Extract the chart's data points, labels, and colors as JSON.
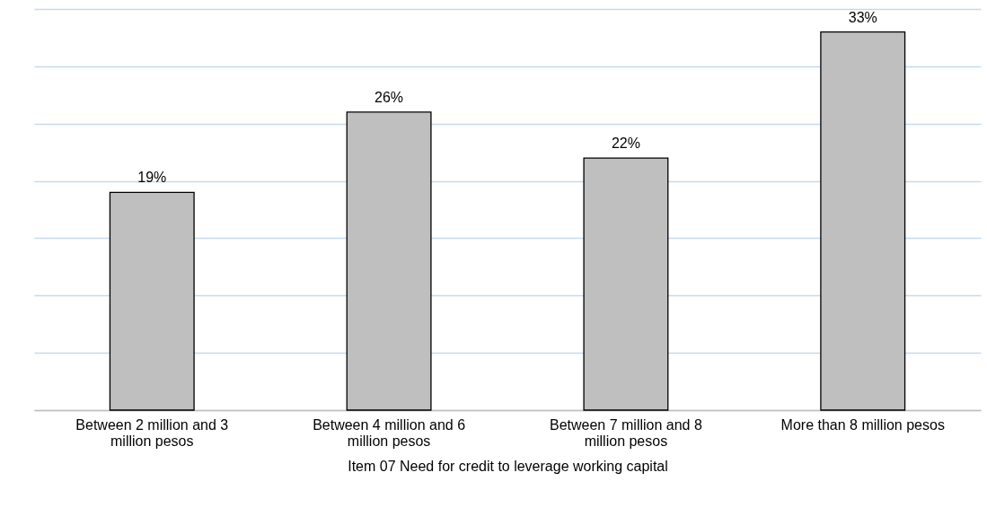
{
  "chart_data": {
    "type": "bar",
    "xlabel": "Item 07 Need for credit to leverage working capital",
    "categories": [
      "Between 2 million and 3 million pesos",
      "Between 4 million and 6 million pesos",
      "Between 7 million and 8 million pesos",
      "More than 8 million pesos"
    ],
    "values": [
      19,
      26,
      22,
      33
    ],
    "color": "#bfbfbf",
    "data_labels": true,
    "value_labels": [
      "19%",
      "26%",
      "22%",
      "33%"
    ],
    "ylim": [
      0,
      35
    ],
    "yticks": [
      {
        "value": 0,
        "label": null
      },
      {
        "value": 5,
        "label": null
      },
      {
        "value": 10,
        "label": null
      },
      {
        "value": 15,
        "label": null
      },
      {
        "value": 20,
        "label": null
      },
      {
        "value": 25,
        "label": null
      },
      {
        "value": 30,
        "label": null
      },
      {
        "value": 35,
        "label": null
      }
    ],
    "grid": true,
    "tick_labels": "x"
  }
}
